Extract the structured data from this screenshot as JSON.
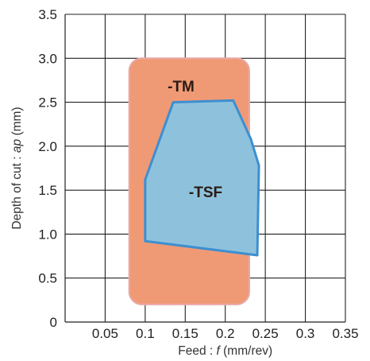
{
  "chart_data": {
    "type": "area",
    "title": "",
    "xlabel_prefix": "Feed : ",
    "xlabel_var": "f",
    "xlabel_suffix": " (mm/rev)",
    "ylabel_prefix": "Depth of cut : ",
    "ylabel_var": "ap",
    "ylabel_suffix": " (mm)",
    "xlim": [
      0,
      0.35
    ],
    "ylim": [
      0,
      3.5
    ],
    "x_ticks": [
      0.05,
      0.1,
      0.15,
      0.2,
      0.25,
      0.3,
      0.35
    ],
    "x_tick_labels": [
      "0.05",
      "0.1",
      "0.15",
      "0.2",
      "0.25",
      "0.3",
      "0.35"
    ],
    "y_ticks": [
      0,
      0.5,
      1.0,
      1.5,
      2.0,
      2.5,
      3.0,
      3.5
    ],
    "y_tick_labels": [
      "0",
      "0.5",
      "1.0",
      "1.5",
      "2.0",
      "2.5",
      "3.0",
      "3.5"
    ],
    "grid": true,
    "regions": [
      {
        "name": "-TM",
        "shape": "rounded-rectangle",
        "x_range": [
          0.08,
          0.23
        ],
        "y_range": [
          0.2,
          3.0
        ],
        "fill": "#f09a75",
        "stroke": "#e8a8a8"
      },
      {
        "name": "-TSF",
        "shape": "polygon",
        "points": [
          [
            0.1,
            0.92
          ],
          [
            0.1,
            1.62
          ],
          [
            0.135,
            2.5
          ],
          [
            0.21,
            2.52
          ],
          [
            0.232,
            2.08
          ],
          [
            0.242,
            1.78
          ],
          [
            0.24,
            0.76
          ]
        ],
        "fill": "#8ec2dc",
        "stroke": "#3d8fd1"
      }
    ]
  }
}
